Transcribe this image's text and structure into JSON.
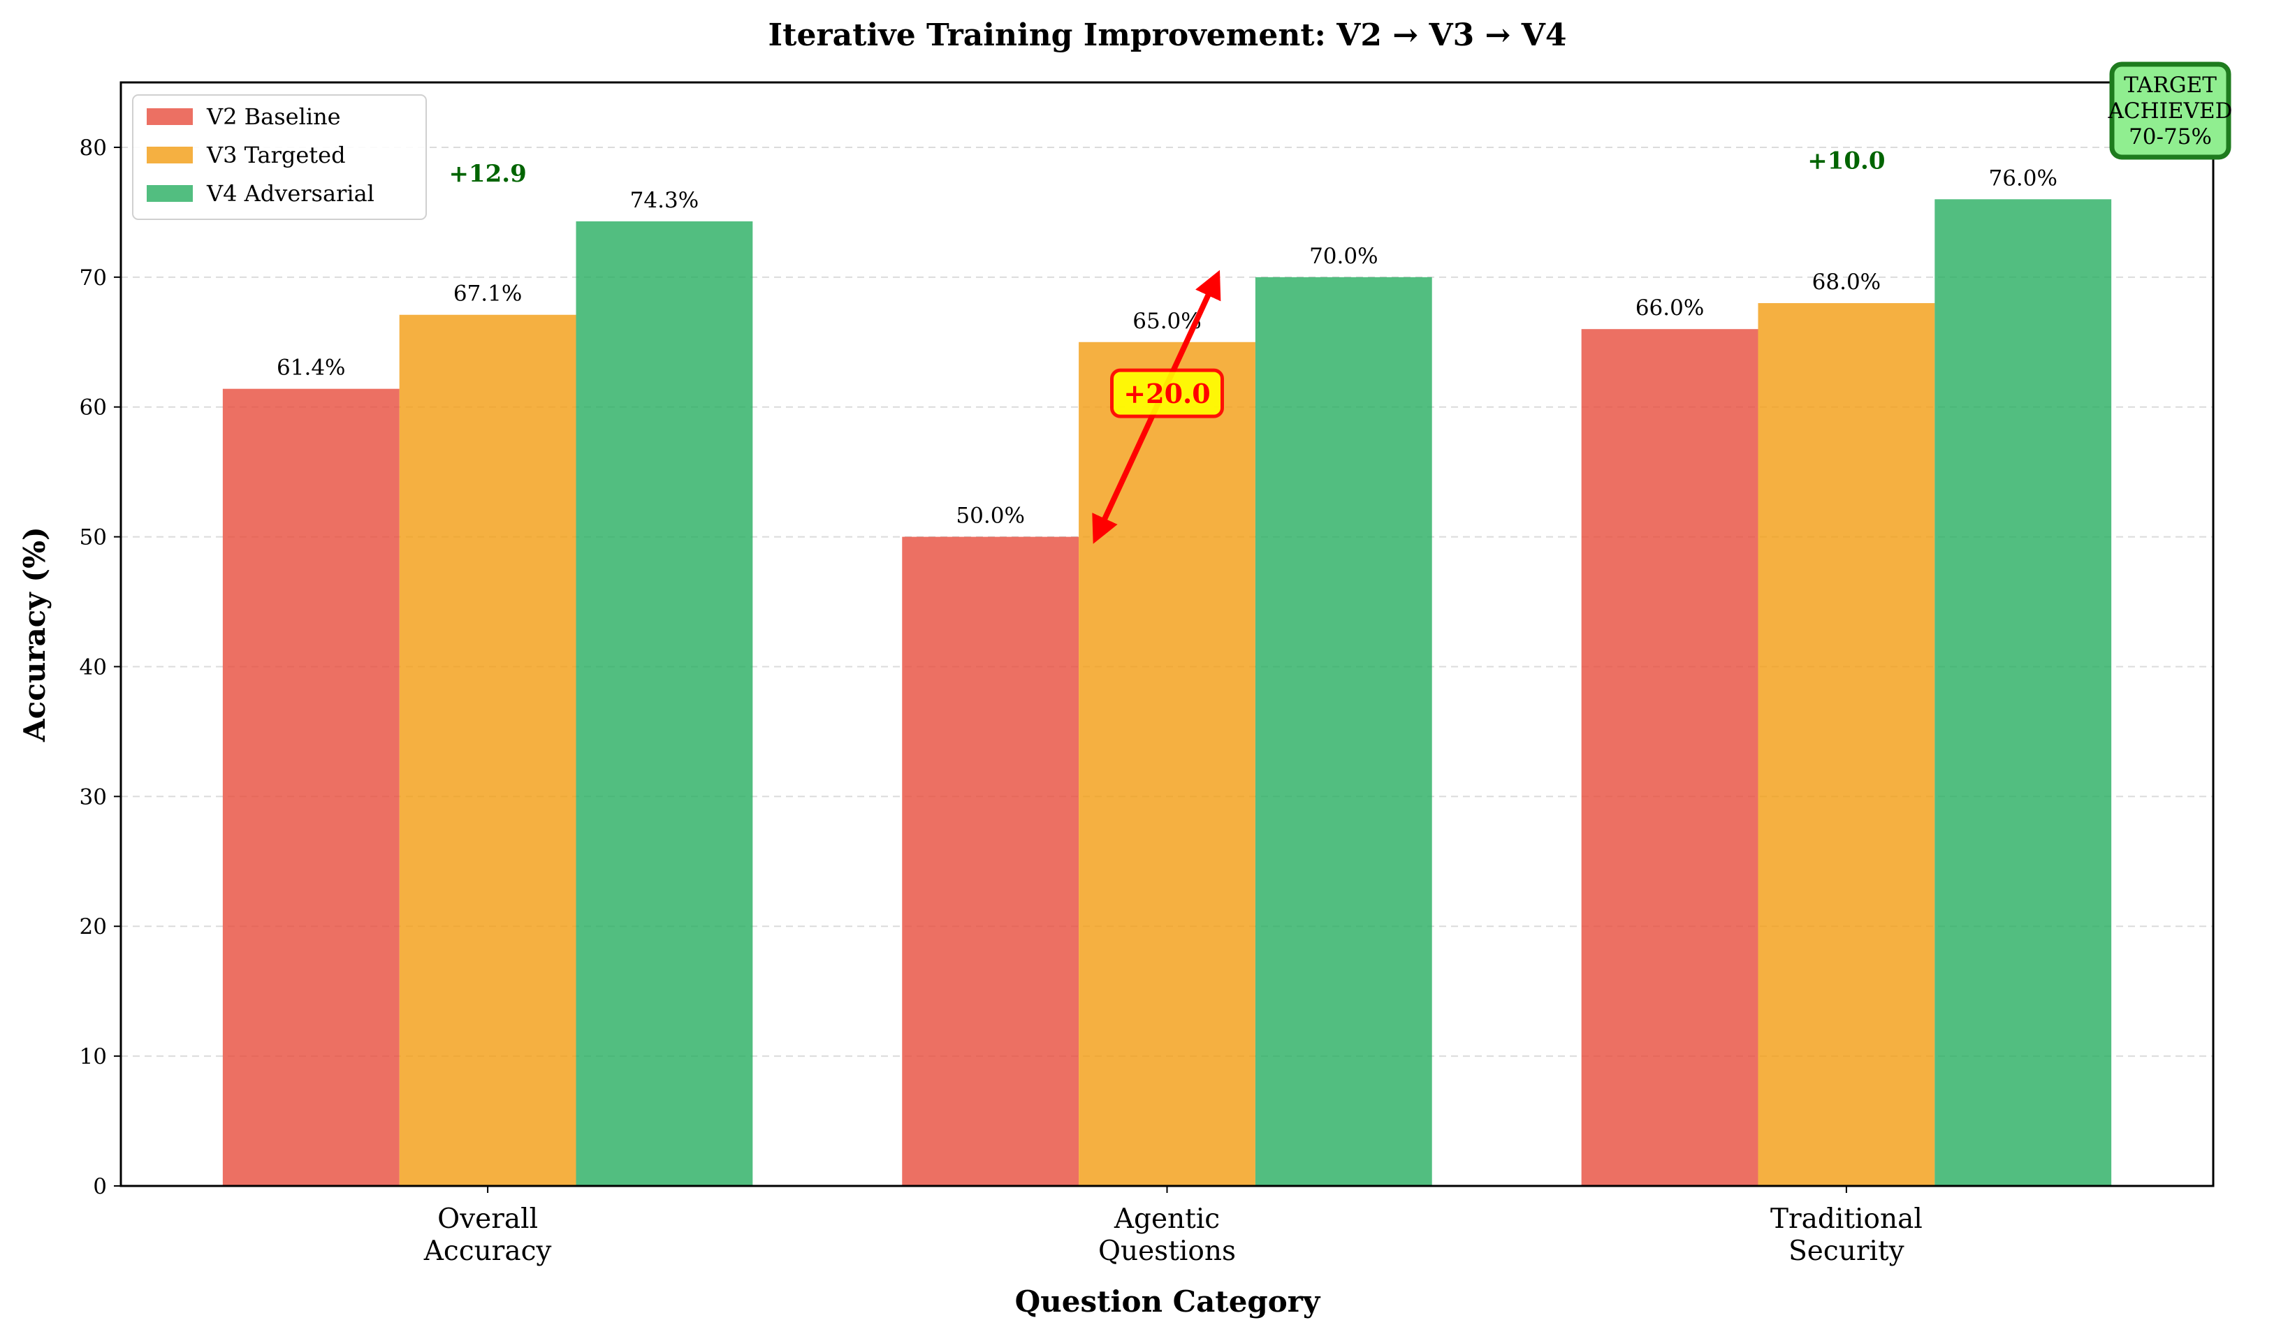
{
  "chart_data": {
    "type": "bar",
    "title": "Iterative Training Improvement: V2 → V3 → V4",
    "xlabel": "Question Category",
    "ylabel": "Accuracy (%)",
    "ylim": [
      0,
      85
    ],
    "yticks": [
      0,
      10,
      20,
      30,
      40,
      50,
      60,
      70,
      80
    ],
    "grid": "y-dashed",
    "legend_position": "top-left",
    "categories": [
      [
        "Overall",
        "Accuracy"
      ],
      [
        "Agentic",
        "Questions"
      ],
      [
        "Traditional",
        "Security"
      ]
    ],
    "series": [
      {
        "name": "V2 Baseline",
        "color": "#e74c3c",
        "values": [
          61.4,
          50.0,
          66.0
        ],
        "labels": [
          "61.4%",
          "50.0%",
          "66.0%"
        ]
      },
      {
        "name": "V3 Targeted",
        "color": "#f39c12",
        "values": [
          67.1,
          65.0,
          68.0
        ],
        "labels": [
          "67.1%",
          "65.0%",
          "68.0%"
        ]
      },
      {
        "name": "V4 Adversarial",
        "color": "#27ae60",
        "values": [
          74.3,
          70.0,
          76.0
        ],
        "labels": [
          "74.3%",
          "70.0%",
          "76.0%"
        ]
      }
    ],
    "annotations": {
      "improvements": [
        {
          "category": 0,
          "text": "+12.9",
          "y": 78,
          "color": "#006400"
        },
        {
          "category": 2,
          "text": "+10.0",
          "y": 79,
          "color": "#006400"
        }
      ],
      "agentic_arrow": {
        "from": 50.0,
        "to": 70.0,
        "color": "#ff0000"
      },
      "agentic_badge": {
        "text": "+20.0",
        "y": 61,
        "bg": "#ffff00",
        "edge": "#ff0000",
        "text_color": "#ff0000"
      },
      "target_box": {
        "lines": [
          "TARGET",
          "ACHIEVED",
          "70-75%"
        ],
        "bg": "#90ee90",
        "edge": "#1e7b1e"
      }
    }
  }
}
